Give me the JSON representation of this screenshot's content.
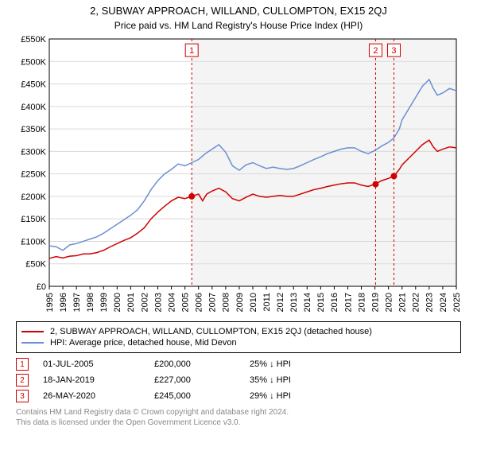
{
  "title": "2, SUBWAY APPROACH, WILLAND, CULLOMPTON, EX15 2QJ",
  "subtitle": "Price paid vs. HM Land Registry's House Price Index (HPI)",
  "chart": {
    "type": "line",
    "background_color": "#ffffff",
    "grid_color": "#d9d9d9",
    "axis_color": "#000000",
    "xlim": [
      1995,
      2025
    ],
    "ylim": [
      0,
      550000
    ],
    "y_ticks": [
      0,
      50000,
      100000,
      150000,
      200000,
      250000,
      300000,
      350000,
      400000,
      450000,
      500000,
      550000
    ],
    "y_tick_labels": [
      "£0",
      "£50K",
      "£100K",
      "£150K",
      "£200K",
      "£250K",
      "£300K",
      "£350K",
      "£400K",
      "£450K",
      "£500K",
      "£550K"
    ],
    "x_ticks": [
      1995,
      1996,
      1997,
      1998,
      1999,
      2000,
      2001,
      2002,
      2003,
      2004,
      2005,
      2006,
      2007,
      2008,
      2009,
      2010,
      2011,
      2012,
      2013,
      2014,
      2015,
      2016,
      2017,
      2018,
      2019,
      2020,
      2021,
      2022,
      2023,
      2024,
      2025
    ],
    "label_fontsize": 11,
    "line_width": 1.5,
    "shaded_region": {
      "x_start": 2005.5,
      "x_end": 2025,
      "fill": "#f4f4f4"
    },
    "event_line_color": "#d00000",
    "event_line_dash": "3,3",
    "series": [
      {
        "name": "property",
        "color": "#d00000",
        "data": [
          [
            1995,
            62000
          ],
          [
            1995.5,
            66000
          ],
          [
            1996,
            63000
          ],
          [
            1996.5,
            67000
          ],
          [
            1997,
            68000
          ],
          [
            1997.5,
            72000
          ],
          [
            1998,
            72000
          ],
          [
            1998.5,
            75000
          ],
          [
            1999,
            80000
          ],
          [
            1999.5,
            88000
          ],
          [
            2000,
            95000
          ],
          [
            2000.5,
            102000
          ],
          [
            2001,
            108000
          ],
          [
            2001.5,
            118000
          ],
          [
            2002,
            130000
          ],
          [
            2002.5,
            150000
          ],
          [
            2003,
            165000
          ],
          [
            2003.5,
            178000
          ],
          [
            2004,
            190000
          ],
          [
            2004.5,
            198000
          ],
          [
            2005,
            195000
          ],
          [
            2005.5,
            200000
          ],
          [
            2006,
            205000
          ],
          [
            2006.3,
            190000
          ],
          [
            2006.6,
            205000
          ],
          [
            2007,
            212000
          ],
          [
            2007.5,
            218000
          ],
          [
            2008,
            210000
          ],
          [
            2008.5,
            195000
          ],
          [
            2009,
            190000
          ],
          [
            2009.5,
            198000
          ],
          [
            2010,
            205000
          ],
          [
            2010.5,
            200000
          ],
          [
            2011,
            198000
          ],
          [
            2011.5,
            200000
          ],
          [
            2012,
            202000
          ],
          [
            2012.5,
            200000
          ],
          [
            2013,
            200000
          ],
          [
            2013.5,
            205000
          ],
          [
            2014,
            210000
          ],
          [
            2014.5,
            215000
          ],
          [
            2015,
            218000
          ],
          [
            2015.5,
            222000
          ],
          [
            2016,
            225000
          ],
          [
            2016.5,
            228000
          ],
          [
            2017,
            230000
          ],
          [
            2017.5,
            230000
          ],
          [
            2018,
            225000
          ],
          [
            2018.5,
            222000
          ],
          [
            2019,
            227000
          ],
          [
            2019.5,
            235000
          ],
          [
            2020,
            240000
          ],
          [
            2020.4,
            245000
          ],
          [
            2020.8,
            260000
          ],
          [
            2021,
            270000
          ],
          [
            2021.5,
            285000
          ],
          [
            2022,
            300000
          ],
          [
            2022.5,
            315000
          ],
          [
            2023,
            325000
          ],
          [
            2023.3,
            310000
          ],
          [
            2023.6,
            300000
          ],
          [
            2024,
            305000
          ],
          [
            2024.5,
            310000
          ],
          [
            2025,
            308000
          ]
        ]
      },
      {
        "name": "hpi",
        "color": "#6a8fd4",
        "data": [
          [
            1995,
            90000
          ],
          [
            1995.5,
            88000
          ],
          [
            1996,
            80000
          ],
          [
            1996.5,
            92000
          ],
          [
            1997,
            95000
          ],
          [
            1997.5,
            100000
          ],
          [
            1998,
            105000
          ],
          [
            1998.5,
            110000
          ],
          [
            1999,
            118000
          ],
          [
            1999.5,
            128000
          ],
          [
            2000,
            138000
          ],
          [
            2000.5,
            148000
          ],
          [
            2001,
            158000
          ],
          [
            2001.5,
            170000
          ],
          [
            2002,
            190000
          ],
          [
            2002.5,
            215000
          ],
          [
            2003,
            235000
          ],
          [
            2003.5,
            250000
          ],
          [
            2004,
            260000
          ],
          [
            2004.5,
            272000
          ],
          [
            2005,
            268000
          ],
          [
            2005.5,
            275000
          ],
          [
            2006,
            282000
          ],
          [
            2006.5,
            295000
          ],
          [
            2007,
            305000
          ],
          [
            2007.5,
            315000
          ],
          [
            2008,
            298000
          ],
          [
            2008.5,
            268000
          ],
          [
            2009,
            258000
          ],
          [
            2009.5,
            270000
          ],
          [
            2010,
            275000
          ],
          [
            2010.5,
            268000
          ],
          [
            2011,
            262000
          ],
          [
            2011.5,
            265000
          ],
          [
            2012,
            262000
          ],
          [
            2012.5,
            260000
          ],
          [
            2013,
            262000
          ],
          [
            2013.5,
            268000
          ],
          [
            2014,
            275000
          ],
          [
            2014.5,
            282000
          ],
          [
            2015,
            288000
          ],
          [
            2015.5,
            295000
          ],
          [
            2016,
            300000
          ],
          [
            2016.5,
            305000
          ],
          [
            2017,
            308000
          ],
          [
            2017.5,
            308000
          ],
          [
            2018,
            300000
          ],
          [
            2018.5,
            295000
          ],
          [
            2019,
            302000
          ],
          [
            2019.5,
            312000
          ],
          [
            2020,
            320000
          ],
          [
            2020.4,
            330000
          ],
          [
            2020.8,
            350000
          ],
          [
            2021,
            370000
          ],
          [
            2021.5,
            395000
          ],
          [
            2022,
            420000
          ],
          [
            2022.5,
            445000
          ],
          [
            2023,
            460000
          ],
          [
            2023.3,
            440000
          ],
          [
            2023.6,
            425000
          ],
          [
            2024,
            430000
          ],
          [
            2024.5,
            440000
          ],
          [
            2025,
            435000
          ]
        ]
      }
    ],
    "event_markers": [
      {
        "num": "1",
        "x": 2005.5,
        "y": 200000,
        "box_y": 525000
      },
      {
        "num": "2",
        "x": 2019.05,
        "y": 227000,
        "box_y": 525000
      },
      {
        "num": "3",
        "x": 2020.4,
        "y": 245000,
        "box_y": 525000
      }
    ]
  },
  "legend": {
    "items": [
      {
        "color": "#d00000",
        "label": "2, SUBWAY APPROACH, WILLAND, CULLOMPTON, EX15 2QJ (detached house)"
      },
      {
        "color": "#6a8fd4",
        "label": "HPI: Average price, detached house, Mid Devon"
      }
    ]
  },
  "events": [
    {
      "num": "1",
      "date": "01-JUL-2005",
      "price": "£200,000",
      "diff": "25% ↓ HPI"
    },
    {
      "num": "2",
      "date": "18-JAN-2019",
      "price": "£227,000",
      "diff": "35% ↓ HPI"
    },
    {
      "num": "3",
      "date": "26-MAY-2020",
      "price": "£245,000",
      "diff": "29% ↓ HPI"
    }
  ],
  "footer": {
    "line1": "Contains HM Land Registry data © Crown copyright and database right 2024.",
    "line2": "This data is licensed under the Open Government Licence v3.0."
  }
}
